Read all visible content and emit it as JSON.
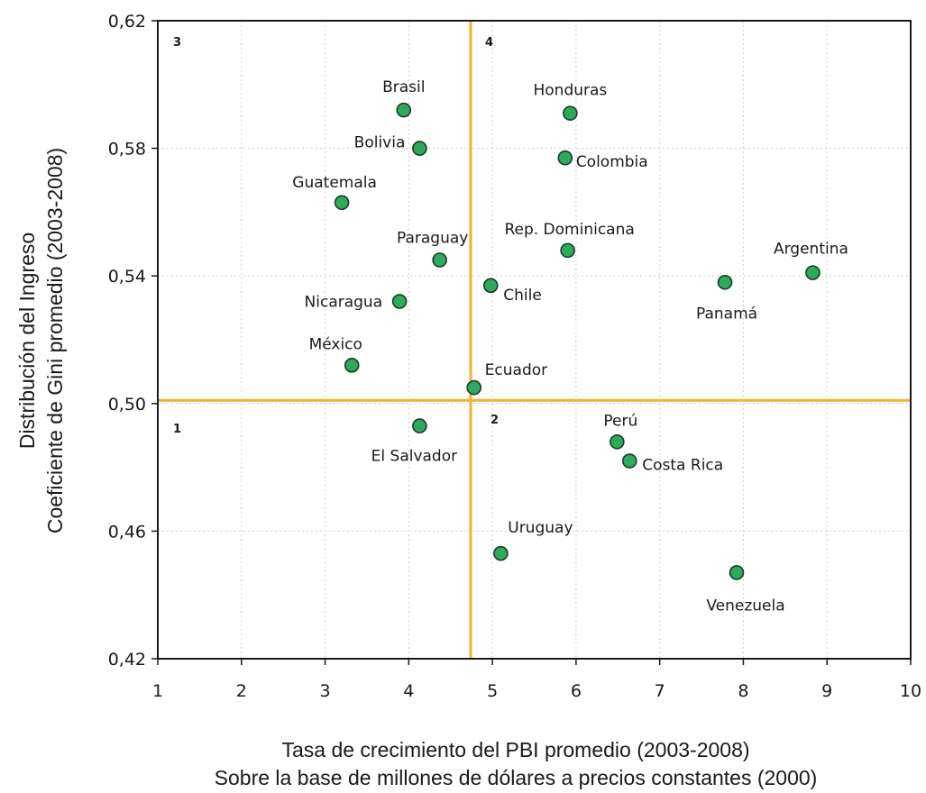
{
  "chart_data": {
    "type": "scatter",
    "xlabel": [
      "Tasa de crecimiento del PBI promedio (2003-2008)",
      "Sobre la base de millones de dólares a precios constantes (2000)"
    ],
    "ylabel": [
      "Distribución del Ingreso",
      "Coeficiente de Gini promedio (2003-2008)"
    ],
    "xlim": [
      1,
      10
    ],
    "ylim": [
      0.42,
      0.62
    ],
    "x_ticks": [
      "1",
      "2",
      "3",
      "4",
      "5",
      "6",
      "7",
      "8",
      "9",
      "10"
    ],
    "y_ticks": [
      "0,42",
      "0,46",
      "0,50",
      "0,54",
      "0,58",
      "0,62"
    ],
    "grid": "dotted",
    "reference_lines": {
      "x": 4.74,
      "y": 0.501
    },
    "quadrants": [
      "1",
      "2",
      "3",
      "4"
    ],
    "colors": {
      "point": "#2eaa5c",
      "point_stroke": "#1b3a28",
      "reference": "#f2b134",
      "grid": "#cfcfcf"
    },
    "points": [
      {
        "label": "Brasil",
        "x": 3.94,
        "y": 0.592
      },
      {
        "label": "Honduras",
        "x": 5.93,
        "y": 0.591
      },
      {
        "label": "Bolivia",
        "x": 4.13,
        "y": 0.58
      },
      {
        "label": "Colombia",
        "x": 5.87,
        "y": 0.577
      },
      {
        "label": "Guatemala",
        "x": 3.2,
        "y": 0.563
      },
      {
        "label": "Rep. Dominicana",
        "x": 5.9,
        "y": 0.548
      },
      {
        "label": "Argentina",
        "x": 8.83,
        "y": 0.541
      },
      {
        "label": "Paraguay",
        "x": 4.37,
        "y": 0.545
      },
      {
        "label": "Panamá",
        "x": 7.78,
        "y": 0.538
      },
      {
        "label": "Chile",
        "x": 4.98,
        "y": 0.537
      },
      {
        "label": "Nicaragua",
        "x": 3.89,
        "y": 0.532
      },
      {
        "label": "México",
        "x": 3.32,
        "y": 0.512
      },
      {
        "label": "Ecuador",
        "x": 4.78,
        "y": 0.505
      },
      {
        "label": "El Salvador",
        "x": 4.13,
        "y": 0.493
      },
      {
        "label": "Perú",
        "x": 6.49,
        "y": 0.488
      },
      {
        "label": "Costa Rica",
        "x": 6.64,
        "y": 0.482
      },
      {
        "label": "Uruguay",
        "x": 5.1,
        "y": 0.453
      },
      {
        "label": "Venezuela",
        "x": 7.92,
        "y": 0.447
      }
    ]
  }
}
